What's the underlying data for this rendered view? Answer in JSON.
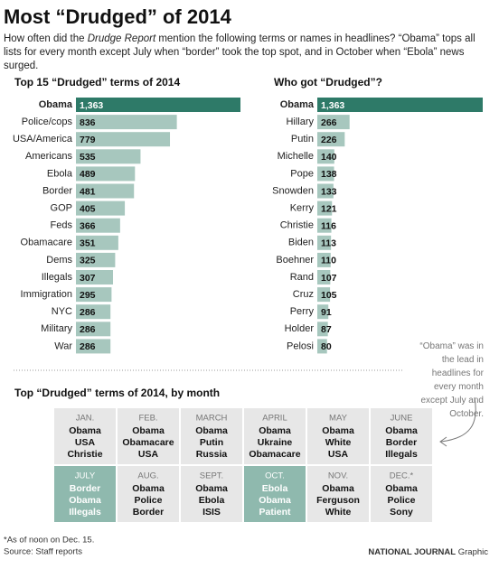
{
  "title": "Most “Drudged” of 2014",
  "subtitle": {
    "before": "How often did the ",
    "italic": "Drudge Report",
    "after": " mention the following terms or names in headlines? “Obama” tops all lists for every month except July when “border” took the top spot, and in October when “Ebola” news surged."
  },
  "chart_data": [
    {
      "type": "bar",
      "orientation": "horizontal",
      "title": "Top 15 “Drudged” terms of 2014",
      "categories": [
        "Obama",
        "Police/cops",
        "USA/America",
        "Americans",
        "Ebola",
        "Border",
        "GOP",
        "Feds",
        "Obamacare",
        "Dems",
        "Illegals",
        "Immigration",
        "NYC",
        "Military",
        "War"
      ],
      "values": [
        1363,
        836,
        779,
        535,
        489,
        481,
        405,
        366,
        351,
        325,
        307,
        295,
        286,
        286,
        286
      ],
      "value_labels": [
        "1,363",
        "836",
        "779",
        "535",
        "489",
        "481",
        "405",
        "366",
        "351",
        "325",
        "307",
        "295",
        "286",
        "286",
        "286"
      ],
      "colors": [
        "#2e7a68",
        "#a7c7be",
        "#a7c7be",
        "#a7c7be",
        "#a7c7be",
        "#a7c7be",
        "#a7c7be",
        "#a7c7be",
        "#a7c7be",
        "#a7c7be",
        "#a7c7be",
        "#a7c7be",
        "#a7c7be",
        "#a7c7be",
        "#a7c7be"
      ]
    },
    {
      "type": "bar",
      "orientation": "horizontal",
      "title": "Who got “Drudged”?",
      "categories": [
        "Obama",
        "Hillary",
        "Putin",
        "Michelle",
        "Pope",
        "Snowden",
        "Kerry",
        "Christie",
        "Biden",
        "Boehner",
        "Rand",
        "Cruz",
        "Perry",
        "Holder",
        "Pelosi"
      ],
      "values": [
        1363,
        266,
        226,
        140,
        138,
        133,
        121,
        116,
        113,
        110,
        107,
        105,
        91,
        87,
        80
      ],
      "value_labels": [
        "1,363",
        "266",
        "226",
        "140",
        "138",
        "133",
        "121",
        "116",
        "113",
        "110",
        "107",
        "105",
        "91",
        "87",
        "80"
      ],
      "colors": [
        "#2e7a68",
        "#a7c7be",
        "#a7c7be",
        "#a7c7be",
        "#a7c7be",
        "#a7c7be",
        "#a7c7be",
        "#a7c7be",
        "#a7c7be",
        "#a7c7be",
        "#a7c7be",
        "#a7c7be",
        "#a7c7be",
        "#a7c7be",
        "#a7c7be"
      ]
    }
  ],
  "annotation": "“Obama” was in the lead in headlines for every month except July and October.",
  "monthly": {
    "title": "Top “Drudged” terms of 2014, by month",
    "months": [
      {
        "name": "JAN.",
        "terms": [
          "Obama",
          "USA",
          "Christie"
        ],
        "highlight": false
      },
      {
        "name": "FEB.",
        "terms": [
          "Obama",
          "Obamacare",
          "USA"
        ],
        "highlight": false
      },
      {
        "name": "MARCH",
        "terms": [
          "Obama",
          "Putin",
          "Russia"
        ],
        "highlight": false
      },
      {
        "name": "APRIL",
        "terms": [
          "Obama",
          "Ukraine",
          "Obamacare"
        ],
        "highlight": false
      },
      {
        "name": "MAY",
        "terms": [
          "Obama",
          "White",
          "USA"
        ],
        "highlight": false
      },
      {
        "name": "JUNE",
        "terms": [
          "Obama",
          "Border",
          "Illegals"
        ],
        "highlight": false
      },
      {
        "name": "JULY",
        "terms": [
          "Border",
          "Obama",
          "Illegals"
        ],
        "highlight": true
      },
      {
        "name": "AUG.",
        "terms": [
          "Obama",
          "Police",
          "Border"
        ],
        "highlight": false
      },
      {
        "name": "SEPT.",
        "terms": [
          "Obama",
          "Ebola",
          "ISIS"
        ],
        "highlight": false
      },
      {
        "name": "OCT.",
        "terms": [
          "Ebola",
          "Obama",
          "Patient"
        ],
        "highlight": true
      },
      {
        "name": "NOV.",
        "terms": [
          "Obama",
          "Ferguson",
          "White"
        ],
        "highlight": false
      },
      {
        "name": "DEC.*",
        "terms": [
          "Obama",
          "Police",
          "Sony"
        ],
        "highlight": false
      }
    ]
  },
  "footnote": "*As of noon on Dec. 15.",
  "source": "Source: Staff reports",
  "credit": {
    "brand": "NATIONAL JOURNAL",
    "label": "Graphic"
  }
}
